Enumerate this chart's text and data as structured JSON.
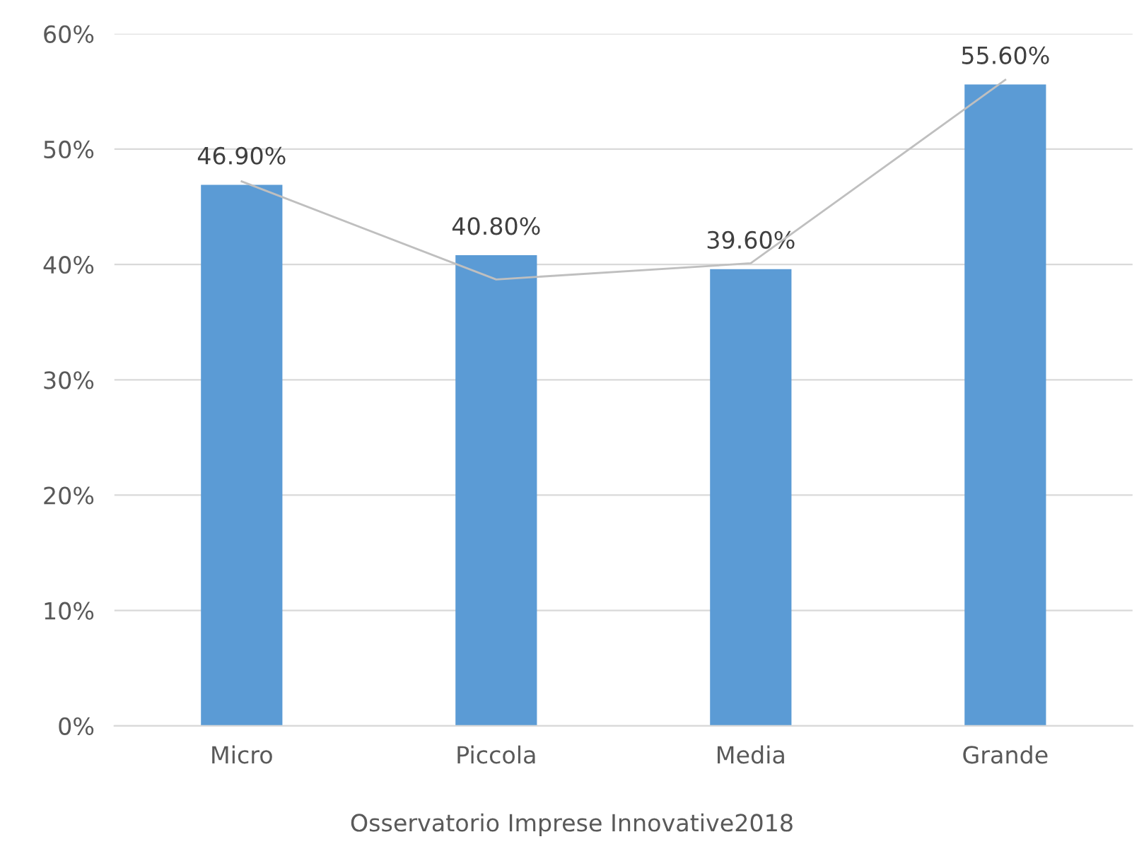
{
  "chart_data": {
    "type": "bar",
    "categories": [
      "Micro",
      "Piccola",
      "Media",
      "Grande"
    ],
    "series": [
      {
        "color": "#5b9bd5",
        "values": [
          46.9,
          40.8,
          39.6,
          55.6
        ],
        "value_labels": [
          "46.90%",
          "40.80%",
          "39.60%",
          "55.60%"
        ]
      },
      {
        "type": "line",
        "color": "#bfbfbf",
        "values": [
          47.2,
          38.7,
          40.1,
          56
        ]
      }
    ],
    "ylim": [
      0,
      60
    ],
    "yticks": [
      {
        "value": 0,
        "label": "0%"
      },
      {
        "value": 10,
        "label": "10%"
      },
      {
        "value": 20,
        "label": "20%"
      },
      {
        "value": 30,
        "label": "30%"
      },
      {
        "value": 40,
        "label": "40%"
      },
      {
        "value": 50,
        "label": "50%"
      },
      {
        "value": 60,
        "label": "60%"
      }
    ],
    "grid": "y",
    "annotations": [
      "Osservatorio Imprese Innovative2018"
    ]
  }
}
